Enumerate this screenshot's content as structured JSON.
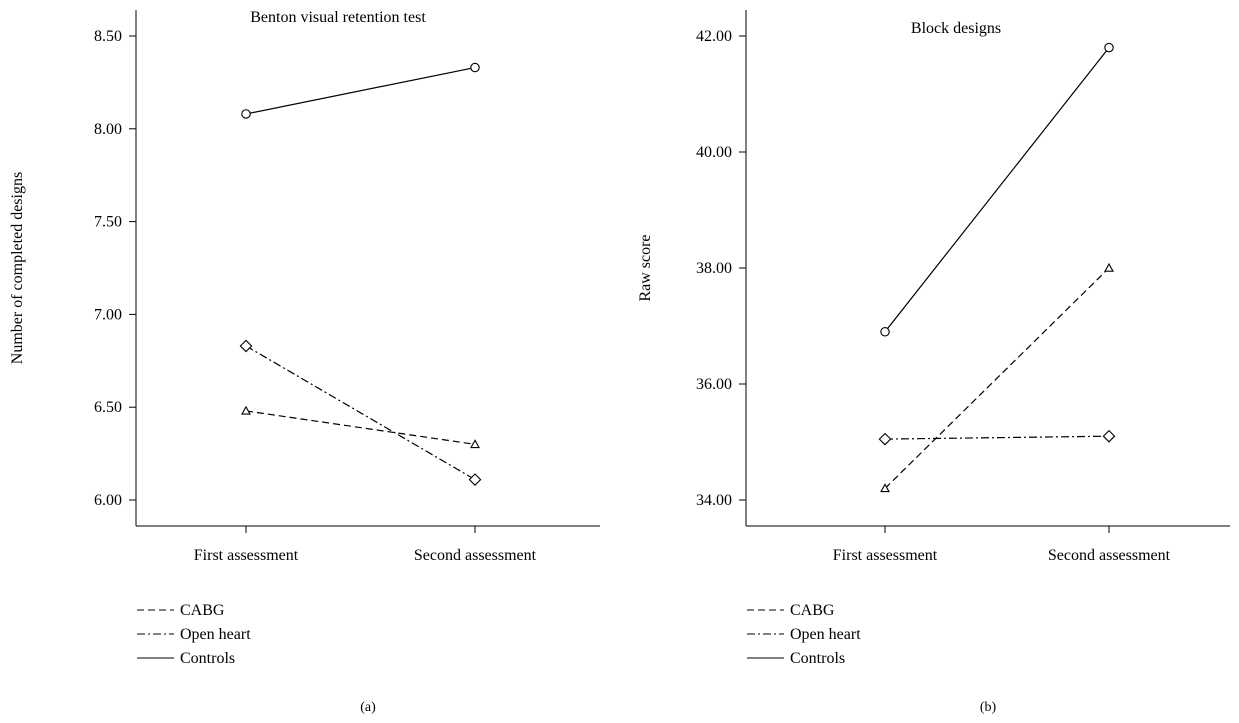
{
  "chart_data": [
    {
      "type": "line",
      "panel_label": "(a)",
      "title": "Benton visual retention test",
      "xlabel": "",
      "ylabel": "Number of completed designs",
      "categories": [
        "First assessment",
        "Second assessment"
      ],
      "yticks": [
        "6.00",
        "6.50",
        "7.00",
        "7.50",
        "8.00",
        "8.50"
      ],
      "ylim": [
        5.9,
        8.6
      ],
      "grid": false,
      "legend_position": "bottom-left",
      "series": [
        {
          "name": "CABG",
          "values": [
            6.48,
            6.3
          ],
          "line_style": "dashed",
          "marker": "triangle"
        },
        {
          "name": "Open heart",
          "values": [
            6.83,
            6.11
          ],
          "line_style": "dash-dot",
          "marker": "diamond"
        },
        {
          "name": "Controls",
          "values": [
            8.08,
            8.33
          ],
          "line_style": "solid",
          "marker": "circle"
        }
      ]
    },
    {
      "type": "line",
      "panel_label": "(b)",
      "title": "Block designs",
      "xlabel": "",
      "ylabel": "Raw score",
      "categories": [
        "First assessment",
        "Second assessment"
      ],
      "yticks": [
        "34.00",
        "36.00",
        "38.00",
        "40.00",
        "42.00"
      ],
      "ylim": [
        33.6,
        42.5
      ],
      "grid": false,
      "legend_position": "bottom-left",
      "series": [
        {
          "name": "CABG",
          "values": [
            34.2,
            38.0
          ],
          "line_style": "dashed",
          "marker": "triangle"
        },
        {
          "name": "Open heart",
          "values": [
            35.05,
            35.1
          ],
          "line_style": "dash-dot",
          "marker": "diamond"
        },
        {
          "name": "Controls",
          "values": [
            36.9,
            41.8
          ],
          "line_style": "solid",
          "marker": "circle"
        }
      ]
    }
  ]
}
